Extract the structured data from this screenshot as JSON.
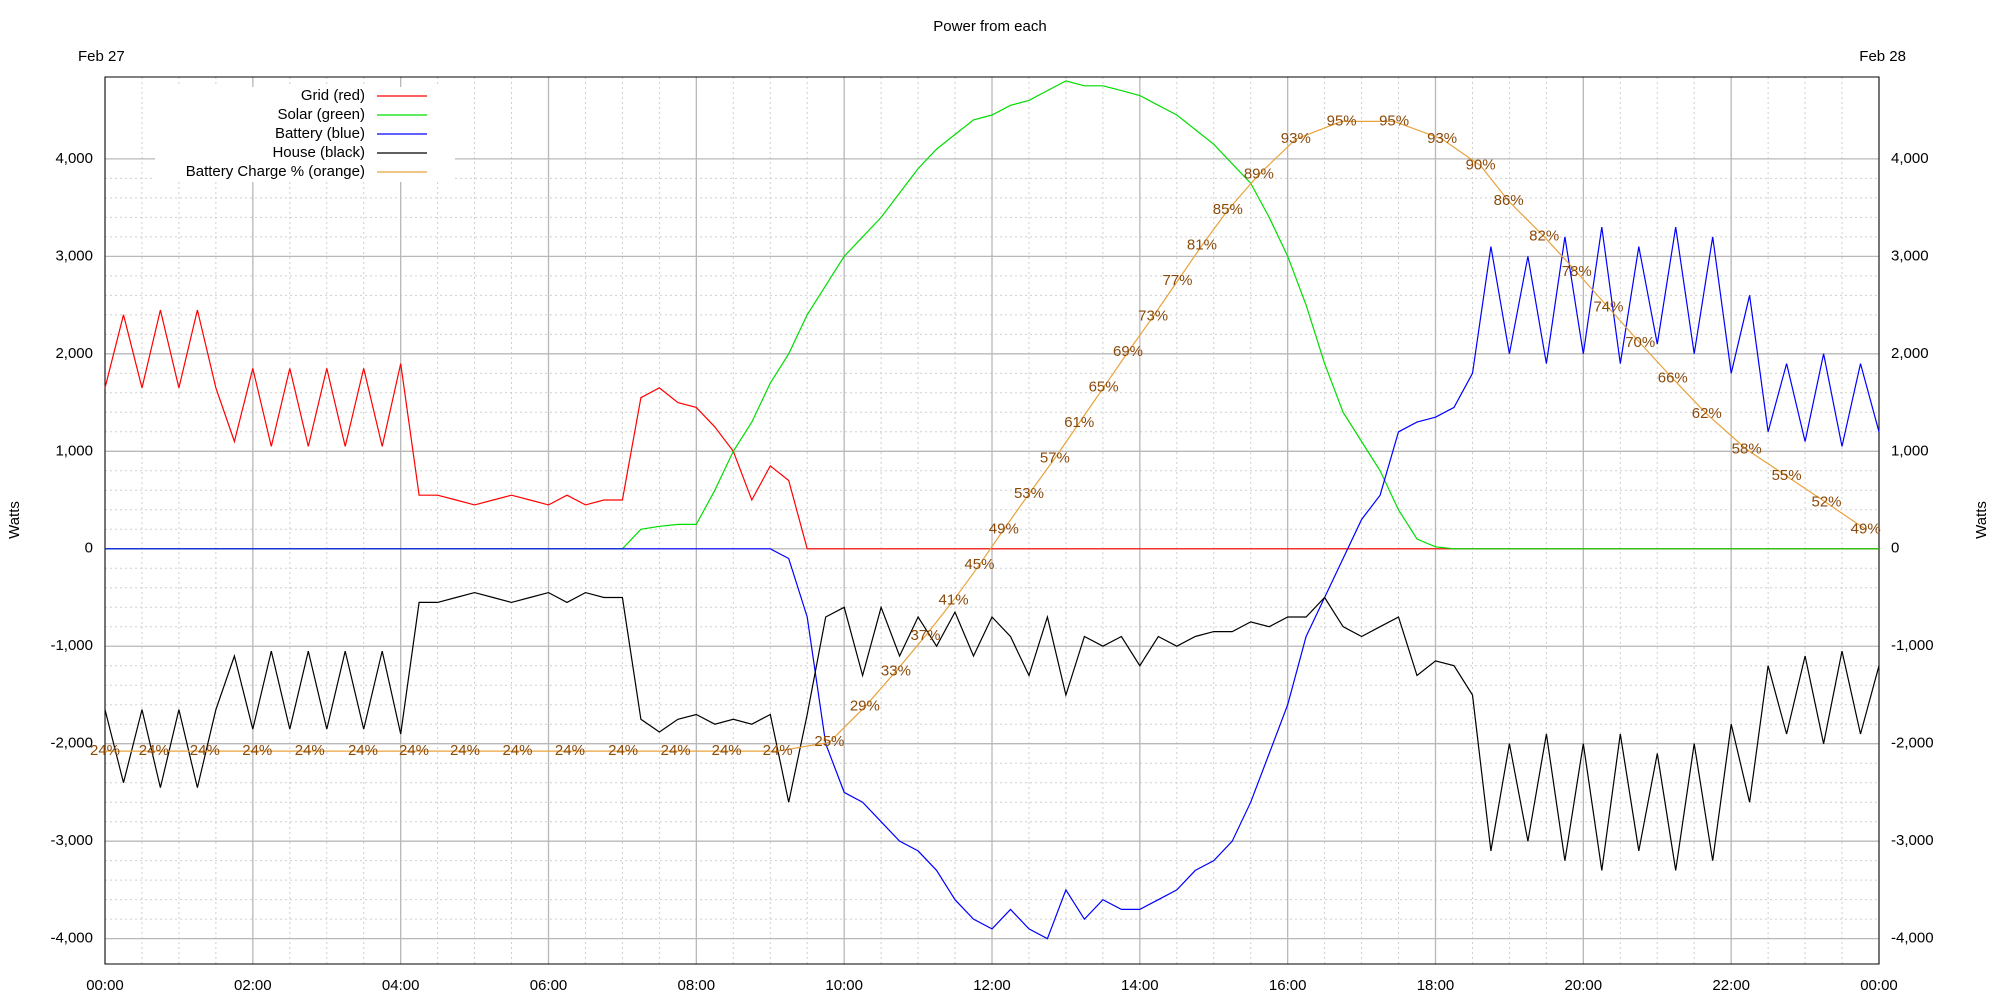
{
  "chart_data": {
    "type": "line",
    "title": "Power from each",
    "date_start": "Feb 27",
    "date_end": "Feb 28",
    "ylabel": "Watts",
    "y2label": "Watts",
    "legend": "top-left",
    "grid": true,
    "minor_grid": true,
    "xlim": [
      0,
      24
    ],
    "xticks": [
      {
        "value": 0,
        "label": "00:00"
      },
      {
        "value": 2,
        "label": "02:00"
      },
      {
        "value": 4,
        "label": "04:00"
      },
      {
        "value": 6,
        "label": "06:00"
      },
      {
        "value": 8,
        "label": "08:00"
      },
      {
        "value": 10,
        "label": "10:00"
      },
      {
        "value": 12,
        "label": "12:00"
      },
      {
        "value": 14,
        "label": "14:00"
      },
      {
        "value": 16,
        "label": "16:00"
      },
      {
        "value": 18,
        "label": "18:00"
      },
      {
        "value": 20,
        "label": "20:00"
      },
      {
        "value": 22,
        "label": "22:00"
      },
      {
        "value": 24,
        "label": "00:00"
      }
    ],
    "ylim": [
      -4260,
      4840
    ],
    "yticks": [
      {
        "value": -4000,
        "label": "-4,000"
      },
      {
        "value": -3000,
        "label": "-3,000"
      },
      {
        "value": -2000,
        "label": "-2,000"
      },
      {
        "value": -1000,
        "label": "-1,000"
      },
      0,
      {
        "value": 1000,
        "label": "1,000"
      },
      {
        "value": 2000,
        "label": "2,000"
      },
      {
        "value": 3000,
        "label": "3,000"
      },
      {
        "value": 4000,
        "label": "4,000"
      }
    ],
    "y2lim": [
      0,
      100
    ],
    "x": [
      0,
      0.25,
      0.5,
      0.75,
      1,
      1.25,
      1.5,
      1.75,
      2,
      2.25,
      2.5,
      2.75,
      3,
      3.25,
      3.5,
      3.75,
      4,
      4.25,
      4.5,
      4.75,
      5,
      5.25,
      5.5,
      5.75,
      6,
      6.25,
      6.5,
      6.75,
      7,
      7.25,
      7.5,
      7.75,
      8,
      8.25,
      8.5,
      8.75,
      9,
      9.25,
      9.5,
      9.75,
      10,
      10.25,
      10.5,
      10.75,
      11,
      11.25,
      11.5,
      11.75,
      12,
      12.25,
      12.5,
      12.75,
      13,
      13.25,
      13.5,
      13.75,
      14,
      14.25,
      14.5,
      14.75,
      15,
      15.25,
      15.5,
      15.75,
      16,
      16.25,
      16.5,
      16.75,
      17,
      17.25,
      17.5,
      17.75,
      18,
      18.25,
      18.5,
      18.75,
      19,
      19.25,
      19.5,
      19.75,
      20,
      20.25,
      20.5,
      20.75,
      21,
      21.25,
      21.5,
      21.75,
      22,
      22.25,
      22.5,
      22.75,
      23,
      23.25,
      23.5,
      23.75,
      24
    ],
    "series": [
      {
        "name": "Grid (red)",
        "color": "#ff0000",
        "values": [
          1650,
          2400,
          1650,
          2450,
          1650,
          2450,
          1650,
          1100,
          1850,
          1050,
          1850,
          1050,
          1850,
          1050,
          1850,
          1050,
          1900,
          550,
          550,
          500,
          450,
          500,
          550,
          500,
          450,
          550,
          450,
          500,
          500,
          1550,
          1650,
          1500,
          1450,
          1250,
          1000,
          500,
          850,
          700,
          0,
          0,
          0,
          0,
          0,
          0,
          0,
          0,
          0,
          0,
          0,
          0,
          0,
          0,
          0,
          0,
          0,
          0,
          0,
          0,
          0,
          0,
          0,
          0,
          0,
          0,
          0,
          0,
          0,
          0,
          0,
          0,
          0,
          0,
          0,
          0,
          0,
          0,
          0,
          0,
          0,
          0,
          0,
          0,
          0,
          0,
          0,
          0,
          0,
          0,
          0,
          0,
          0,
          0,
          0,
          0,
          0,
          0,
          0
        ]
      },
      {
        "name": "Solar (green)",
        "color": "#00dd00",
        "values": [
          0,
          0,
          0,
          0,
          0,
          0,
          0,
          0,
          0,
          0,
          0,
          0,
          0,
          0,
          0,
          0,
          0,
          0,
          0,
          0,
          0,
          0,
          0,
          0,
          0,
          0,
          0,
          0,
          0,
          200,
          230,
          250,
          250,
          600,
          1000,
          1300,
          1700,
          2000,
          2400,
          2700,
          3000,
          3200,
          3400,
          3650,
          3900,
          4100,
          4250,
          4400,
          4450,
          4550,
          4600,
          4700,
          4800,
          4750,
          4750,
          4700,
          4650,
          4550,
          4450,
          4300,
          4150,
          3950,
          3750,
          3400,
          3000,
          2500,
          1900,
          1400,
          1100,
          800,
          400,
          100,
          20,
          0,
          0,
          0,
          0,
          0,
          0,
          0,
          0,
          0,
          0,
          0,
          0,
          0,
          0,
          0,
          0,
          0,
          0,
          0,
          0,
          0,
          0,
          0,
          0
        ]
      },
      {
        "name": "Battery (blue)",
        "color": "#0000ff",
        "values": [
          0,
          0,
          0,
          0,
          0,
          0,
          0,
          0,
          0,
          0,
          0,
          0,
          0,
          0,
          0,
          0,
          0,
          0,
          0,
          0,
          0,
          0,
          0,
          0,
          0,
          0,
          0,
          0,
          0,
          0,
          0,
          0,
          0,
          0,
          0,
          0,
          0,
          -100,
          -700,
          -2000,
          -2500,
          -2600,
          -2800,
          -3000,
          -3100,
          -3300,
          -3600,
          -3800,
          -3900,
          -3700,
          -3900,
          -4000,
          -3500,
          -3800,
          -3600,
          -3700,
          -3700,
          -3600,
          -3500,
          -3300,
          -3200,
          -3000,
          -2600,
          -2100,
          -1600,
          -900,
          -500,
          -100,
          300,
          550,
          1200,
          1300,
          1350,
          1450,
          1800,
          3100,
          2000,
          3000,
          1900,
          3200,
          2000,
          3300,
          1900,
          3100,
          2100,
          3300,
          2000,
          3200,
          1800,
          2600,
          1200,
          1900,
          1100,
          2000,
          1050,
          1900,
          1200
        ]
      },
      {
        "name": "House (black)",
        "color": "#000000",
        "values": [
          -1650,
          -2400,
          -1650,
          -2450,
          -1650,
          -2450,
          -1650,
          -1100,
          -1850,
          -1050,
          -1850,
          -1050,
          -1850,
          -1050,
          -1850,
          -1050,
          -1900,
          -550,
          -550,
          -500,
          -450,
          -500,
          -550,
          -500,
          -450,
          -550,
          -450,
          -500,
          -500,
          -1750,
          -1880,
          -1750,
          -1700,
          -1800,
          -1750,
          -1800,
          -1700,
          -2600,
          -1700,
          -700,
          -600,
          -1300,
          -600,
          -1100,
          -700,
          -1000,
          -650,
          -1100,
          -700,
          -900,
          -1300,
          -700,
          -1500,
          -900,
          -1000,
          -900,
          -1200,
          -900,
          -1000,
          -900,
          -850,
          -850,
          -750,
          -800,
          -700,
          -700,
          -500,
          -800,
          -900,
          -800,
          -700,
          -1300,
          -1150,
          -1200,
          -1500,
          -3100,
          -2000,
          -3000,
          -1900,
          -3200,
          -2000,
          -3300,
          -1900,
          -3100,
          -2100,
          -3300,
          -2000,
          -3200,
          -1800,
          -2600,
          -1200,
          -1900,
          -1100,
          -2000,
          -1050,
          -1900,
          -1200
        ]
      },
      {
        "name": "Battery Charge % (orange)",
        "color": "#e8a33d",
        "label_color": "#8a4a0a",
        "axis": "y2",
        "x": [
          0,
          0.66,
          1.35,
          2.06,
          2.77,
          3.49,
          4.18,
          4.87,
          5.58,
          6.29,
          7.01,
          7.72,
          8.41,
          9.1,
          9.8,
          10.28,
          10.7,
          11.1,
          11.48,
          11.83,
          12.16,
          12.5,
          12.85,
          13.18,
          13.51,
          13.84,
          14.18,
          14.51,
          14.84,
          15.19,
          15.61,
          16.11,
          16.73,
          17.44,
          18.09,
          18.61,
          18.99,
          19.47,
          19.91,
          20.34,
          20.77,
          21.21,
          21.67,
          22.21,
          22.75,
          23.29,
          23.82
        ],
        "values": [
          24,
          24,
          24,
          24,
          24,
          24,
          24,
          24,
          24,
          24,
          24,
          24,
          24,
          24,
          25,
          29,
          33,
          37,
          41,
          45,
          49,
          53,
          57,
          61,
          65,
          69,
          73,
          77,
          81,
          85,
          89,
          93,
          95,
          95,
          93,
          90,
          86,
          82,
          78,
          74,
          70,
          66,
          62,
          58,
          55,
          52,
          49
        ],
        "value_labels": [
          "24%",
          "24%",
          "24%",
          "24%",
          "24%",
          "24%",
          "24%",
          "24%",
          "24%",
          "24%",
          "24%",
          "24%",
          "24%",
          "24%",
          "25%",
          "29%",
          "33%",
          "37%",
          "41%",
          "45%",
          "49%",
          "53%",
          "57%",
          "61%",
          "65%",
          "69%",
          "73%",
          "77%",
          "81%",
          "85%",
          "89%",
          "93%",
          "95%",
          "95%",
          "93%",
          "90%",
          "86%",
          "82%",
          "78%",
          "74%",
          "70%",
          "66%",
          "62%",
          "58%",
          "55%",
          "52%",
          "49%"
        ]
      }
    ]
  }
}
